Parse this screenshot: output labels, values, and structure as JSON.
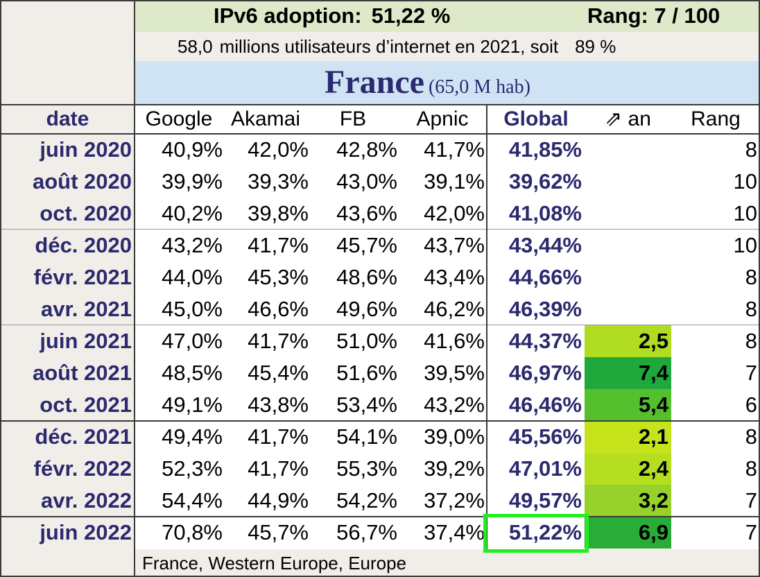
{
  "header": {
    "adoption_label": "IPv6 adoption:",
    "adoption_value": "51,22 %",
    "rank_label": "Rang: 7 / 100",
    "users_count": "58,0",
    "users_text": "millions utilisateurs d’internet en 2021, soit",
    "users_pct": "89 %",
    "country": "France",
    "population": "(65,0 M hab)"
  },
  "columns": {
    "date": "date",
    "google": "Google",
    "akamai": "Akamai",
    "fb": "FB",
    "apnic": "Apnic",
    "global": "Global",
    "trend": "⇗ an",
    "rank": "Rang"
  },
  "rows": [
    {
      "date": "juin 2020",
      "google": "40,9%",
      "akamai": "42,0%",
      "fb": "42,8%",
      "apnic": "41,7%",
      "global": "41,85%",
      "trend": "",
      "rank": "8"
    },
    {
      "date": "août 2020",
      "google": "39,9%",
      "akamai": "39,3%",
      "fb": "43,0%",
      "apnic": "39,1%",
      "global": "39,62%",
      "trend": "",
      "rank": "10"
    },
    {
      "date": "oct. 2020",
      "google": "40,2%",
      "akamai": "39,8%",
      "fb": "43,6%",
      "apnic": "42,0%",
      "global": "41,08%",
      "trend": "",
      "rank": "10"
    },
    {
      "date": "déc. 2020",
      "google": "43,2%",
      "akamai": "41,7%",
      "fb": "45,7%",
      "apnic": "43,7%",
      "global": "43,44%",
      "trend": "",
      "rank": "10"
    },
    {
      "date": "févr. 2021",
      "google": "44,0%",
      "akamai": "45,3%",
      "fb": "48,6%",
      "apnic": "43,4%",
      "global": "44,66%",
      "trend": "",
      "rank": "8"
    },
    {
      "date": "avr. 2021",
      "google": "45,0%",
      "akamai": "46,6%",
      "fb": "49,6%",
      "apnic": "46,2%",
      "global": "46,39%",
      "trend": "",
      "rank": "8"
    },
    {
      "date": "juin 2021",
      "google": "47,0%",
      "akamai": "41,7%",
      "fb": "51,0%",
      "apnic": "41,6%",
      "global": "44,37%",
      "trend": "2,5",
      "trend_color": "#b0dc22",
      "rank": "8"
    },
    {
      "date": "août 2021",
      "google": "48,5%",
      "akamai": "45,4%",
      "fb": "51,6%",
      "apnic": "39,5%",
      "global": "46,97%",
      "trend": "7,4",
      "trend_color": "#1fa83c",
      "rank": "7"
    },
    {
      "date": "oct. 2021",
      "google": "49,1%",
      "akamai": "43,8%",
      "fb": "53,4%",
      "apnic": "43,2%",
      "global": "46,46%",
      "trend": "5,4",
      "trend_color": "#55c02e",
      "rank": "6"
    },
    {
      "date": "déc. 2021",
      "google": "49,4%",
      "akamai": "41,7%",
      "fb": "54,1%",
      "apnic": "39,0%",
      "global": "45,56%",
      "trend": "2,1",
      "trend_color": "#c6e41c",
      "rank": "8"
    },
    {
      "date": "févr. 2022",
      "google": "52,3%",
      "akamai": "41,7%",
      "fb": "55,3%",
      "apnic": "39,2%",
      "global": "47,01%",
      "trend": "2,4",
      "trend_color": "#b5de20",
      "rank": "8"
    },
    {
      "date": "avr. 2022",
      "google": "54,4%",
      "akamai": "44,9%",
      "fb": "54,2%",
      "apnic": "37,2%",
      "global": "49,57%",
      "trend": "3,2",
      "trend_color": "#96d22a",
      "rank": "7"
    },
    {
      "date": "juin 2022",
      "google": "70,8%",
      "akamai": "45,7%",
      "fb": "56,7%",
      "apnic": "37,4%",
      "global": "51,22%",
      "trend": "6,9",
      "trend_color": "#2aac38",
      "rank": "7"
    }
  ],
  "footer": "France, Western Europe, Europe",
  "colors": {
    "header_green": "#dde9c9",
    "header_blue": "#cfe3f4",
    "panel_beige": "#f1eee9",
    "navy_text": "#2b2a6e",
    "highlight": "#22ee22"
  }
}
